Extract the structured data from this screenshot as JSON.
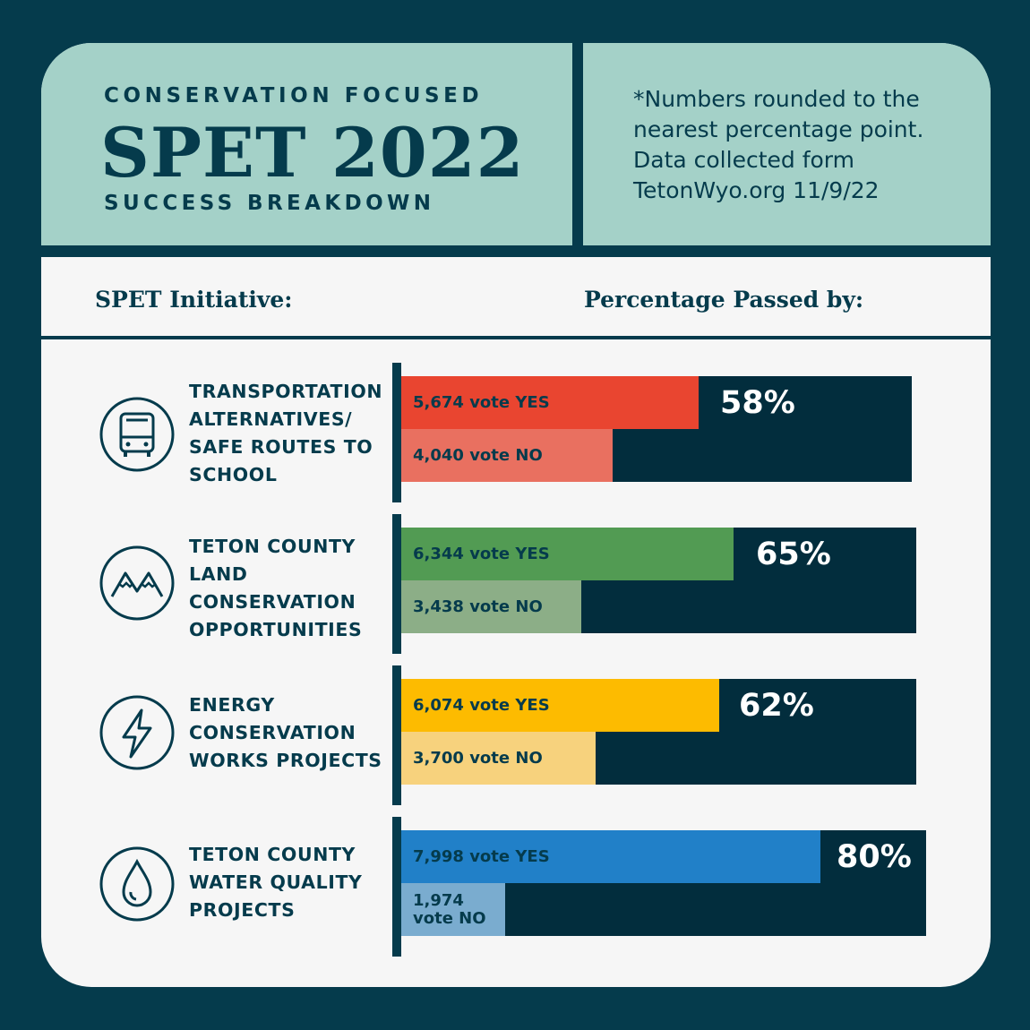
{
  "header": {
    "kicker": "CONSERVATION FOCUSED",
    "title": "SPET 2022",
    "subtitle": "SUCCESS BREAKDOWN",
    "note": "*Numbers rounded to the nearest percentage point. Data collected form TetonWyo.org 11/9/22"
  },
  "columns": {
    "initiative": "SPET Initiative:",
    "percentage": "Percentage Passed by:"
  },
  "colors": {
    "background": "#053b4c",
    "header": "#a4d1c8",
    "bar_track": "#022d3d"
  },
  "chart_data": {
    "type": "bar",
    "title": "SPET 2022",
    "categories": [
      "TRANSPORTATION ALTERNATIVES/ SAFE ROUTES TO SCHOOL",
      "TETON COUNTY LAND CONSERVATION OPPORTUNITIES",
      "ENERGY CONSERVATION WORKS PROJECTS",
      "TETON COUNTY WATER QUALITY PROJECTS"
    ],
    "items": [
      {
        "label_lines": [
          "TRANSPORTATION",
          "ALTERNATIVES/",
          "SAFE ROUTES TO",
          "SCHOOL"
        ],
        "icon": "bus-icon",
        "yes": 5674,
        "no": 4040,
        "yes_label": "5,674 vote YES",
        "no_label": "4,040 vote NO",
        "pct_label": "58%",
        "yes_color": "#e94530",
        "no_color": "#e97060"
      },
      {
        "label_lines": [
          "TETON COUNTY",
          "LAND",
          "CONSERVATION",
          "OPPORTUNITIES"
        ],
        "icon": "mountain-icon",
        "yes": 6344,
        "no": 3438,
        "yes_label": "6,344 vote YES",
        "no_label": "3,438 vote NO",
        "pct_label": "65%",
        "yes_color": "#529b53",
        "no_color": "#8cae87"
      },
      {
        "label_lines": [
          "ENERGY",
          "CONSERVATION",
          "WORKS PROJECTS"
        ],
        "icon": "lightning-icon",
        "yes": 6074,
        "no": 3700,
        "yes_label": "6,074 vote YES",
        "no_label": "3,700 vote NO",
        "pct_label": "62%",
        "yes_color": "#fdbb00",
        "no_color": "#f7d27d"
      },
      {
        "label_lines": [
          "TETON COUNTY",
          "WATER QUALITY",
          "PROJECTS"
        ],
        "icon": "water-drop-icon",
        "yes": 7998,
        "no": 1974,
        "yes_label": "7,998 vote YES",
        "no_label": "1,974 vote NO",
        "pct_label": "80%",
        "yes_color": "#2180c8",
        "no_color": "#7aaccf"
      }
    ]
  }
}
